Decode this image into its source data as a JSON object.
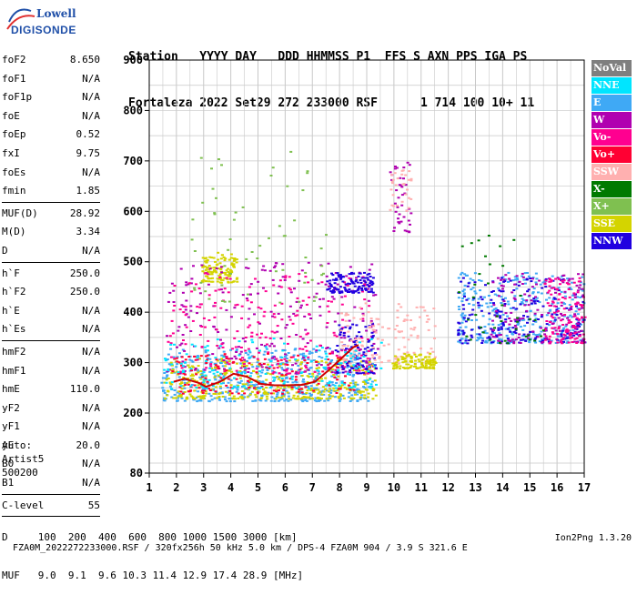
{
  "logo": {
    "line1": "Lowell",
    "line2": "DIGISONDE"
  },
  "header": {
    "labels": [
      "Station",
      "YYYY DAY",
      "DDD HHMMSS P1",
      "FFS S",
      "AXN PPS IGA PS"
    ],
    "values": [
      "Fortaleza",
      "2022 Set29",
      "272 233000 RSF",
      "1",
      "714 100 10+ 11"
    ]
  },
  "params": {
    "group1": [
      {
        "name": "foF2",
        "value": "8.650"
      },
      {
        "name": "foF1",
        "value": "N/A"
      },
      {
        "name": "foF1p",
        "value": "N/A"
      },
      {
        "name": "foE",
        "value": "N/A"
      },
      {
        "name": "foEp",
        "value": "0.52"
      },
      {
        "name": "fxI",
        "value": "9.75"
      },
      {
        "name": "foEs",
        "value": "N/A"
      },
      {
        "name": "fmin",
        "value": "1.85"
      }
    ],
    "group2": [
      {
        "name": "MUF(D)",
        "value": "28.92"
      },
      {
        "name": "M(D)",
        "value": "3.34"
      },
      {
        "name": "D",
        "value": "N/A"
      }
    ],
    "group3": [
      {
        "name": "h`F",
        "value": "250.0"
      },
      {
        "name": "h`F2",
        "value": "250.0"
      },
      {
        "name": "h`E",
        "value": "N/A"
      },
      {
        "name": "h`Es",
        "value": "N/A"
      }
    ],
    "group4": [
      {
        "name": "hmF2",
        "value": "N/A"
      },
      {
        "name": "hmF1",
        "value": "N/A"
      },
      {
        "name": "hmE",
        "value": "110.0"
      },
      {
        "name": "yF2",
        "value": "N/A"
      },
      {
        "name": "yF1",
        "value": "N/A"
      },
      {
        "name": "yE",
        "value": "20.0"
      },
      {
        "name": "B0",
        "value": "N/A"
      },
      {
        "name": "B1",
        "value": "N/A"
      }
    ],
    "group5": [
      {
        "name": "C-level",
        "value": "55"
      }
    ]
  },
  "auto": {
    "line1": "Auto:",
    "line2": "Artist5",
    "line3": "500200"
  },
  "legend": [
    {
      "label": "NoVal",
      "color": "#7f7f7f"
    },
    {
      "label": "NNE",
      "color": "#00e5ff"
    },
    {
      "label": "E",
      "color": "#3fa9f5"
    },
    {
      "label": "W",
      "color": "#b000b0"
    },
    {
      "label": "Vo-",
      "color": "#ff0090"
    },
    {
      "label": "Vo+",
      "color": "#ff0033"
    },
    {
      "label": "SSW",
      "color": "#ffb0b0"
    },
    {
      "label": "X-",
      "color": "#007a00"
    },
    {
      "label": "X+",
      "color": "#7fc050"
    },
    {
      "label": "SSE",
      "color": "#d4d400"
    },
    {
      "label": "NNW",
      "color": "#2000e0"
    }
  ],
  "footer": {
    "d_row": "D     100  200  400  600  800 1000 1500 3000 [km]",
    "muf_row": "MUF   9.0  9.1  9.6 10.3 11.4 12.9 17.4 28.9 [MHz]",
    "info": "FZA0M_2022272233000.RSF / 320fx256h 50 kHz 5.0 km / DPS-4 FZA0M 904 / 3.9 S 321.6 E",
    "version": "Ion2Png 1.3.20"
  },
  "chart_data": {
    "type": "scatter",
    "xlim": [
      1,
      17
    ],
    "ylim": [
      80,
      900
    ],
    "x_ticks": [
      1,
      2,
      3,
      4,
      5,
      6,
      7,
      8,
      9,
      10,
      11,
      12,
      13,
      14,
      15,
      16,
      17
    ],
    "y_ticks": [
      80,
      200,
      300,
      400,
      500,
      600,
      700,
      800,
      900
    ],
    "grid": true,
    "legend_position": "right",
    "trace_color": "#cc0000",
    "trace": [
      [
        1.9,
        262
      ],
      [
        2.3,
        268
      ],
      [
        2.8,
        260
      ],
      [
        3.1,
        252
      ],
      [
        3.6,
        262
      ],
      [
        4.1,
        278
      ],
      [
        4.6,
        272
      ],
      [
        5.1,
        258
      ],
      [
        5.6,
        255
      ],
      [
        6.1,
        255
      ],
      [
        6.6,
        256
      ],
      [
        7.1,
        262
      ],
      [
        7.6,
        285
      ],
      [
        8.1,
        310
      ],
      [
        8.5,
        330
      ],
      [
        8.7,
        335
      ]
    ],
    "echo_clusters": [
      {
        "name": "E",
        "x": [
          1.4,
          9.2
        ],
        "y": [
          225,
          330
        ],
        "color": "#3fa9f5",
        "count": 520
      },
      {
        "name": "SSE",
        "x": [
          1.5,
          9.3
        ],
        "y": [
          230,
          310
        ],
        "color": "#d4d400",
        "count": 380
      },
      {
        "name": "SSE",
        "x": [
          2.9,
          4.2
        ],
        "y": [
          460,
          520
        ],
        "color": "#d4d400",
        "count": 120
      },
      {
        "name": "W",
        "x": [
          1.6,
          9.4
        ],
        "y": [
          280,
          500
        ],
        "color": "#b000b0",
        "count": 260
      },
      {
        "name": "Vo-",
        "x": [
          1.6,
          9.2
        ],
        "y": [
          280,
          480
        ],
        "color": "#ff0090",
        "count": 220
      },
      {
        "name": "Vo+",
        "x": [
          1.8,
          8.5
        ],
        "y": [
          240,
          320
        ],
        "color": "#ff0033",
        "count": 150
      },
      {
        "name": "NNW",
        "x": [
          7.5,
          9.2
        ],
        "y": [
          440,
          480
        ],
        "color": "#2000e0",
        "count": 120
      },
      {
        "name": "NNW",
        "x": [
          7.8,
          9.3
        ],
        "y": [
          280,
          380
        ],
        "color": "#2000e0",
        "count": 90
      },
      {
        "name": "SSW",
        "x": [
          8.0,
          11.5
        ],
        "y": [
          300,
          420
        ],
        "color": "#ffb0b0",
        "count": 140
      },
      {
        "name": "X+",
        "x": [
          2.5,
          7.5
        ],
        "y": [
          420,
          720
        ],
        "color": "#7fc050",
        "count": 60
      },
      {
        "name": "NNE",
        "x": [
          1.5,
          9.5
        ],
        "y": [
          250,
          350
        ],
        "color": "#00e5ff",
        "count": 160
      },
      {
        "name": "SSE",
        "x": [
          9.9,
          11.5
        ],
        "y": [
          290,
          320
        ],
        "color": "#d4d400",
        "count": 110
      },
      {
        "name": "E",
        "x": [
          12.3,
          17.0
        ],
        "y": [
          340,
          480
        ],
        "color": "#3fa9f5",
        "count": 320
      },
      {
        "name": "NNW",
        "x": [
          12.3,
          17.0
        ],
        "y": [
          340,
          470
        ],
        "color": "#2000e0",
        "count": 200
      },
      {
        "name": "W",
        "x": [
          13.5,
          17.0
        ],
        "y": [
          340,
          480
        ],
        "color": "#b000b0",
        "count": 150
      },
      {
        "name": "Vo-",
        "x": [
          15.5,
          17.0
        ],
        "y": [
          340,
          470
        ],
        "color": "#ff0090",
        "count": 120
      },
      {
        "name": "X-",
        "x": [
          12.3,
          15.5
        ],
        "y": [
          340,
          560
        ],
        "color": "#007a00",
        "count": 40
      },
      {
        "name": "W",
        "x": [
          9.8,
          10.6
        ],
        "y": [
          560,
          700
        ],
        "color": "#b000b0",
        "count": 40
      },
      {
        "name": "SSW",
        "x": [
          9.8,
          10.6
        ],
        "y": [
          600,
          700
        ],
        "color": "#ffb0b0",
        "count": 30
      }
    ]
  }
}
